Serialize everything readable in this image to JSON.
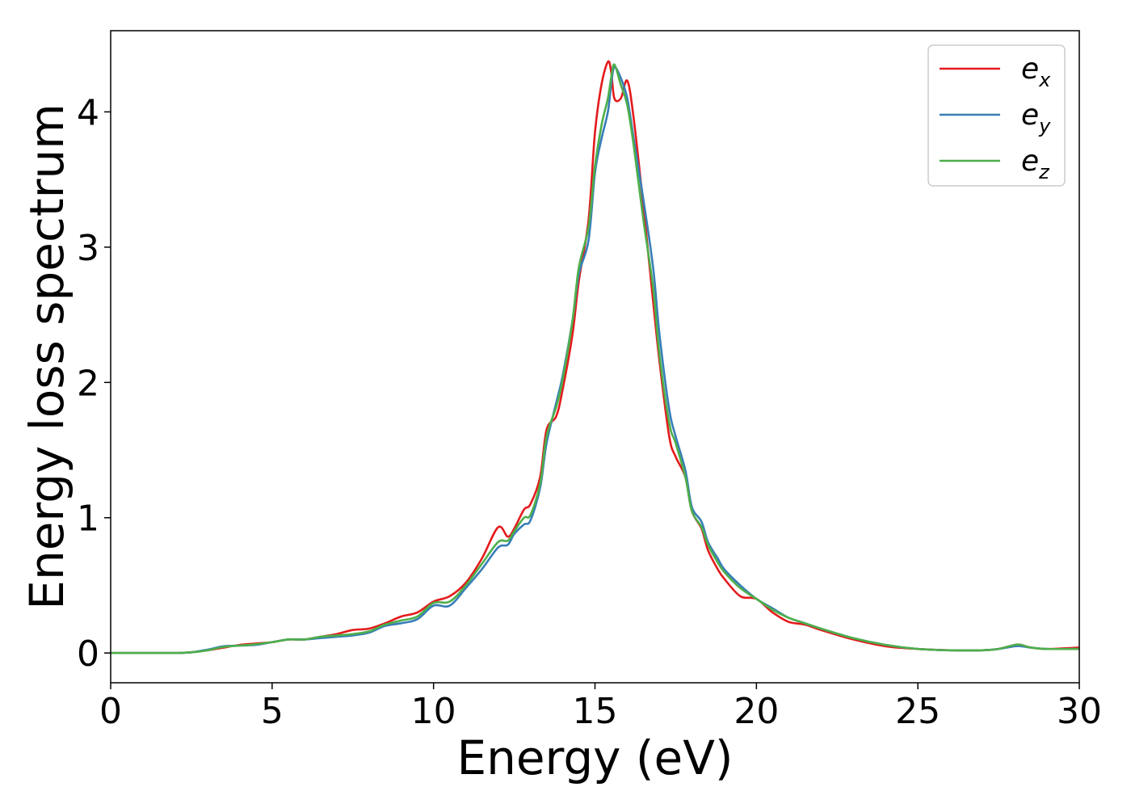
{
  "chart_data": {
    "type": "line",
    "xlabel": "Energy (eV)",
    "ylabel": "Energy loss spectrum",
    "xlim": [
      0,
      30
    ],
    "ylim": [
      -0.22,
      4.6
    ],
    "xticks": [
      0,
      5,
      10,
      15,
      20,
      25,
      30
    ],
    "yticks": [
      0,
      1,
      2,
      3,
      4
    ],
    "grid": false,
    "legend_position": "top-right",
    "series": [
      {
        "name": "e_x",
        "label_base": "e",
        "label_sub": "x",
        "color": "#e41a1c",
        "x": [
          0,
          1,
          2,
          2.5,
          3,
          3.5,
          4,
          4.5,
          5,
          5.5,
          6,
          6.5,
          7,
          7.5,
          8,
          8.5,
          9,
          9.5,
          10,
          10.5,
          11,
          11.5,
          12,
          12.3,
          12.5,
          12.8,
          13,
          13.3,
          13.5,
          13.8,
          14,
          14.3,
          14.5,
          14.8,
          15,
          15.2,
          15.4,
          15.5,
          15.6,
          15.8,
          16,
          16.2,
          16.5,
          16.8,
          17,
          17.3,
          17.5,
          17.8,
          18,
          18.3,
          18.5,
          18.8,
          19,
          19.5,
          20,
          20.5,
          21,
          21.5,
          22,
          23,
          24,
          25,
          26,
          27,
          27.5,
          28,
          28.2,
          28.5,
          29,
          30
        ],
        "y": [
          0,
          0,
          0,
          0.005,
          0.02,
          0.04,
          0.06,
          0.07,
          0.08,
          0.1,
          0.1,
          0.12,
          0.14,
          0.17,
          0.18,
          0.22,
          0.27,
          0.3,
          0.38,
          0.42,
          0.52,
          0.7,
          0.93,
          0.86,
          0.92,
          1.06,
          1.1,
          1.3,
          1.65,
          1.75,
          1.95,
          2.35,
          2.75,
          3.2,
          3.85,
          4.2,
          4.37,
          4.3,
          4.1,
          4.1,
          4.23,
          3.95,
          3.3,
          2.6,
          2.15,
          1.6,
          1.45,
          1.3,
          1.05,
          0.92,
          0.76,
          0.62,
          0.55,
          0.42,
          0.4,
          0.3,
          0.23,
          0.21,
          0.17,
          0.1,
          0.05,
          0.03,
          0.02,
          0.02,
          0.03,
          0.06,
          0.06,
          0.04,
          0.03,
          0.04
        ]
      },
      {
        "name": "e_y",
        "label_base": "e",
        "label_sub": "y",
        "color": "#377eb8",
        "x": [
          0,
          1,
          2,
          2.5,
          3,
          3.5,
          4,
          4.5,
          5,
          5.5,
          6,
          6.5,
          7,
          7.5,
          8,
          8.5,
          9,
          9.5,
          10,
          10.5,
          11,
          11.5,
          12,
          12.3,
          12.5,
          12.8,
          13,
          13.3,
          13.5,
          13.8,
          14,
          14.3,
          14.5,
          14.8,
          15,
          15.2,
          15.4,
          15.5,
          15.6,
          15.8,
          16,
          16.2,
          16.5,
          16.8,
          17,
          17.3,
          17.5,
          17.8,
          18,
          18.3,
          18.5,
          18.8,
          19,
          19.5,
          20,
          20.5,
          21,
          21.5,
          22,
          23,
          24,
          25,
          26,
          27,
          27.5,
          28,
          28.2,
          28.5,
          29,
          30
        ],
        "y": [
          0,
          0,
          0,
          0.005,
          0.025,
          0.05,
          0.055,
          0.06,
          0.08,
          0.1,
          0.1,
          0.11,
          0.12,
          0.13,
          0.15,
          0.2,
          0.22,
          0.25,
          0.35,
          0.35,
          0.48,
          0.62,
          0.78,
          0.8,
          0.88,
          0.95,
          0.98,
          1.22,
          1.55,
          1.85,
          2.05,
          2.45,
          2.8,
          3.05,
          3.55,
          3.8,
          4.0,
          4.2,
          4.33,
          4.25,
          4.1,
          3.8,
          3.35,
          2.85,
          2.35,
          1.8,
          1.6,
          1.35,
          1.08,
          0.97,
          0.82,
          0.7,
          0.62,
          0.5,
          0.4,
          0.33,
          0.26,
          0.22,
          0.18,
          0.11,
          0.06,
          0.03,
          0.02,
          0.02,
          0.03,
          0.05,
          0.05,
          0.04,
          0.03,
          0.03
        ]
      },
      {
        "name": "e_z",
        "label_base": "e",
        "label_sub": "z",
        "color": "#4daf4a",
        "x": [
          0,
          1,
          2,
          2.5,
          3,
          3.5,
          4,
          4.5,
          5,
          5.5,
          6,
          6.5,
          7,
          7.5,
          8,
          8.5,
          9,
          9.5,
          10,
          10.5,
          11,
          11.5,
          12,
          12.3,
          12.5,
          12.8,
          13,
          13.3,
          13.5,
          13.8,
          14,
          14.3,
          14.5,
          14.8,
          15,
          15.2,
          15.4,
          15.5,
          15.6,
          15.8,
          16,
          16.2,
          16.5,
          16.8,
          17,
          17.3,
          17.5,
          17.8,
          18,
          18.3,
          18.5,
          18.8,
          19,
          19.5,
          20,
          20.5,
          21,
          21.5,
          22,
          23,
          24,
          25,
          26,
          27,
          27.5,
          28,
          28.2,
          28.5,
          29,
          30
        ],
        "y": [
          0,
          0,
          0,
          0.005,
          0.02,
          0.045,
          0.055,
          0.065,
          0.08,
          0.1,
          0.1,
          0.12,
          0.13,
          0.14,
          0.16,
          0.21,
          0.24,
          0.27,
          0.37,
          0.38,
          0.5,
          0.66,
          0.82,
          0.83,
          0.9,
          1.0,
          1.02,
          1.25,
          1.6,
          1.82,
          2.02,
          2.45,
          2.85,
          3.15,
          3.6,
          3.9,
          4.1,
          4.25,
          4.35,
          4.2,
          4.05,
          3.75,
          3.2,
          2.7,
          2.2,
          1.7,
          1.55,
          1.3,
          1.05,
          0.93,
          0.8,
          0.67,
          0.6,
          0.48,
          0.4,
          0.32,
          0.26,
          0.22,
          0.18,
          0.11,
          0.06,
          0.03,
          0.02,
          0.02,
          0.03,
          0.06,
          0.06,
          0.04,
          0.03,
          0.03
        ]
      }
    ]
  }
}
